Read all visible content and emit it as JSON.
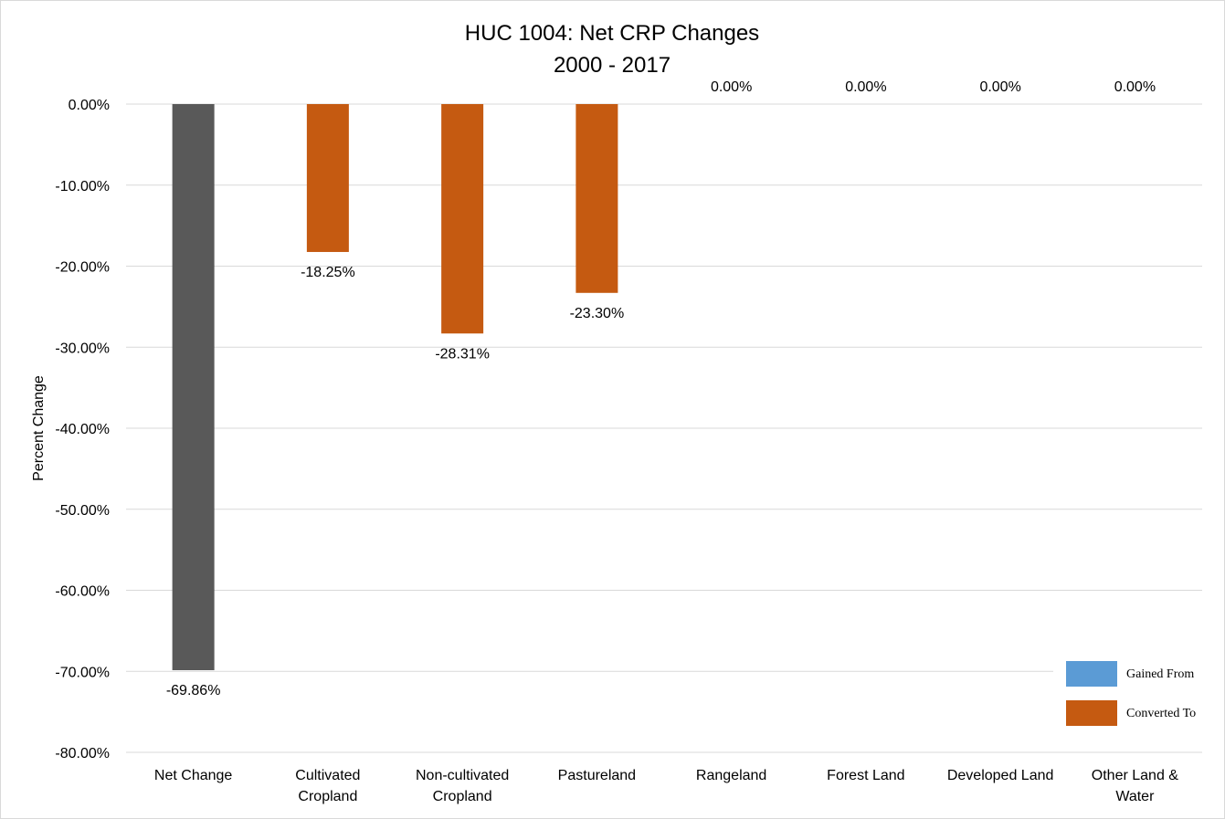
{
  "chart_data": {
    "type": "bar",
    "title": "HUC 1004: Net CRP Changes",
    "subtitle": "2000 - 2017",
    "xlabel": "",
    "ylabel": "Percent Change",
    "ylim": [
      -80,
      0
    ],
    "y_ticks": [
      "0.00%",
      "-10.00%",
      "-20.00%",
      "-30.00%",
      "-40.00%",
      "-50.00%",
      "-60.00%",
      "-70.00%",
      "-80.00%"
    ],
    "y_tick_values": [
      0,
      -10,
      -20,
      -30,
      -40,
      -50,
      -60,
      -70,
      -80
    ],
    "categories": [
      [
        "Net Change"
      ],
      [
        "Cultivated",
        "Cropland"
      ],
      [
        "Non-cultivated",
        "Cropland"
      ],
      [
        "Pastureland"
      ],
      [
        "Rangeland"
      ],
      [
        "Forest Land"
      ],
      [
        "Developed Land"
      ],
      [
        "Other Land &",
        "Water"
      ]
    ],
    "values": [
      -69.86,
      -18.25,
      -28.31,
      -23.3,
      0.0,
      0.0,
      0.0,
      0.0
    ],
    "data_labels": [
      "-69.86%",
      "-18.25%",
      "-28.31%",
      "-23.30%",
      "0.00%",
      "0.00%",
      "0.00%",
      "0.00%"
    ],
    "bar_roles": [
      "net",
      "converted",
      "converted",
      "converted",
      "converted",
      "converted",
      "converted",
      "converted"
    ],
    "series": [
      {
        "name": "Gained From",
        "color": "#5b9bd5"
      },
      {
        "name": "Converted To",
        "color": "#c55a11"
      }
    ],
    "net_color": "#595959",
    "grid": true,
    "legend_position": "bottom-right"
  }
}
